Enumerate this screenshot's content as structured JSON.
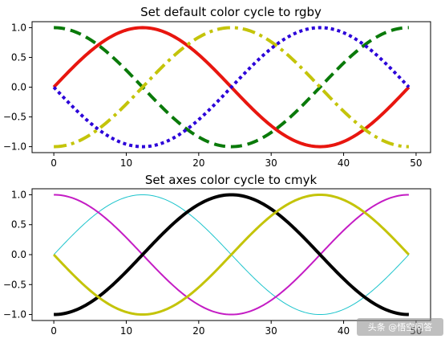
{
  "chart_data": [
    {
      "type": "line",
      "title": "Set default color cycle to rgby",
      "xlabel": "",
      "ylabel": "",
      "xlim": [
        -3,
        52
      ],
      "ylim": [
        -1.1,
        1.1
      ],
      "xticks": [
        0,
        10,
        20,
        30,
        40,
        50
      ],
      "yticks": [
        -1.0,
        -0.5,
        0.0,
        0.5,
        1.0
      ],
      "grid": false,
      "x_range": [
        0,
        49
      ],
      "series": [
        {
          "function": "sin(2*pi*x/49)",
          "color": "#e8160f",
          "linestyle": "solid",
          "linewidth": 4
        },
        {
          "function": "cos(2*pi*x/49)",
          "color": "#0a7a0a",
          "linestyle": "dashed",
          "linewidth": 4
        },
        {
          "function": "-cos(2*pi*x/49)",
          "color": "#c4c40a",
          "linestyle": "dashdot",
          "linewidth": 4
        },
        {
          "function": "-sin(2*pi*x/49)",
          "color": "#2b00d9",
          "linestyle": "dotted",
          "linewidth": 4
        }
      ]
    },
    {
      "type": "line",
      "title": "Set axes color cycle to cmyk",
      "xlabel": "",
      "ylabel": "",
      "xlim": [
        -3,
        52
      ],
      "ylim": [
        -1.1,
        1.1
      ],
      "xticks": [
        0,
        10,
        20,
        30,
        40,
        50
      ],
      "yticks": [
        -1.0,
        -0.5,
        0.0,
        0.5,
        1.0
      ],
      "grid": false,
      "x_range": [
        0,
        49
      ],
      "series": [
        {
          "function": "sin(2*pi*x/49)",
          "color": "#1cc4cc",
          "linestyle": "solid",
          "linewidth": 1
        },
        {
          "function": "cos(2*pi*x/49)",
          "color": "#c41cc4",
          "linestyle": "solid",
          "linewidth": 2
        },
        {
          "function": "-cos(2*pi*x/49)",
          "color": "#000000",
          "linestyle": "solid",
          "linewidth": 4
        },
        {
          "function": "-sin(2*pi*x/49)",
          "color": "#c4c40a",
          "linestyle": "solid",
          "linewidth": 3
        }
      ]
    }
  ],
  "watermark": "头条 @悟空问答"
}
